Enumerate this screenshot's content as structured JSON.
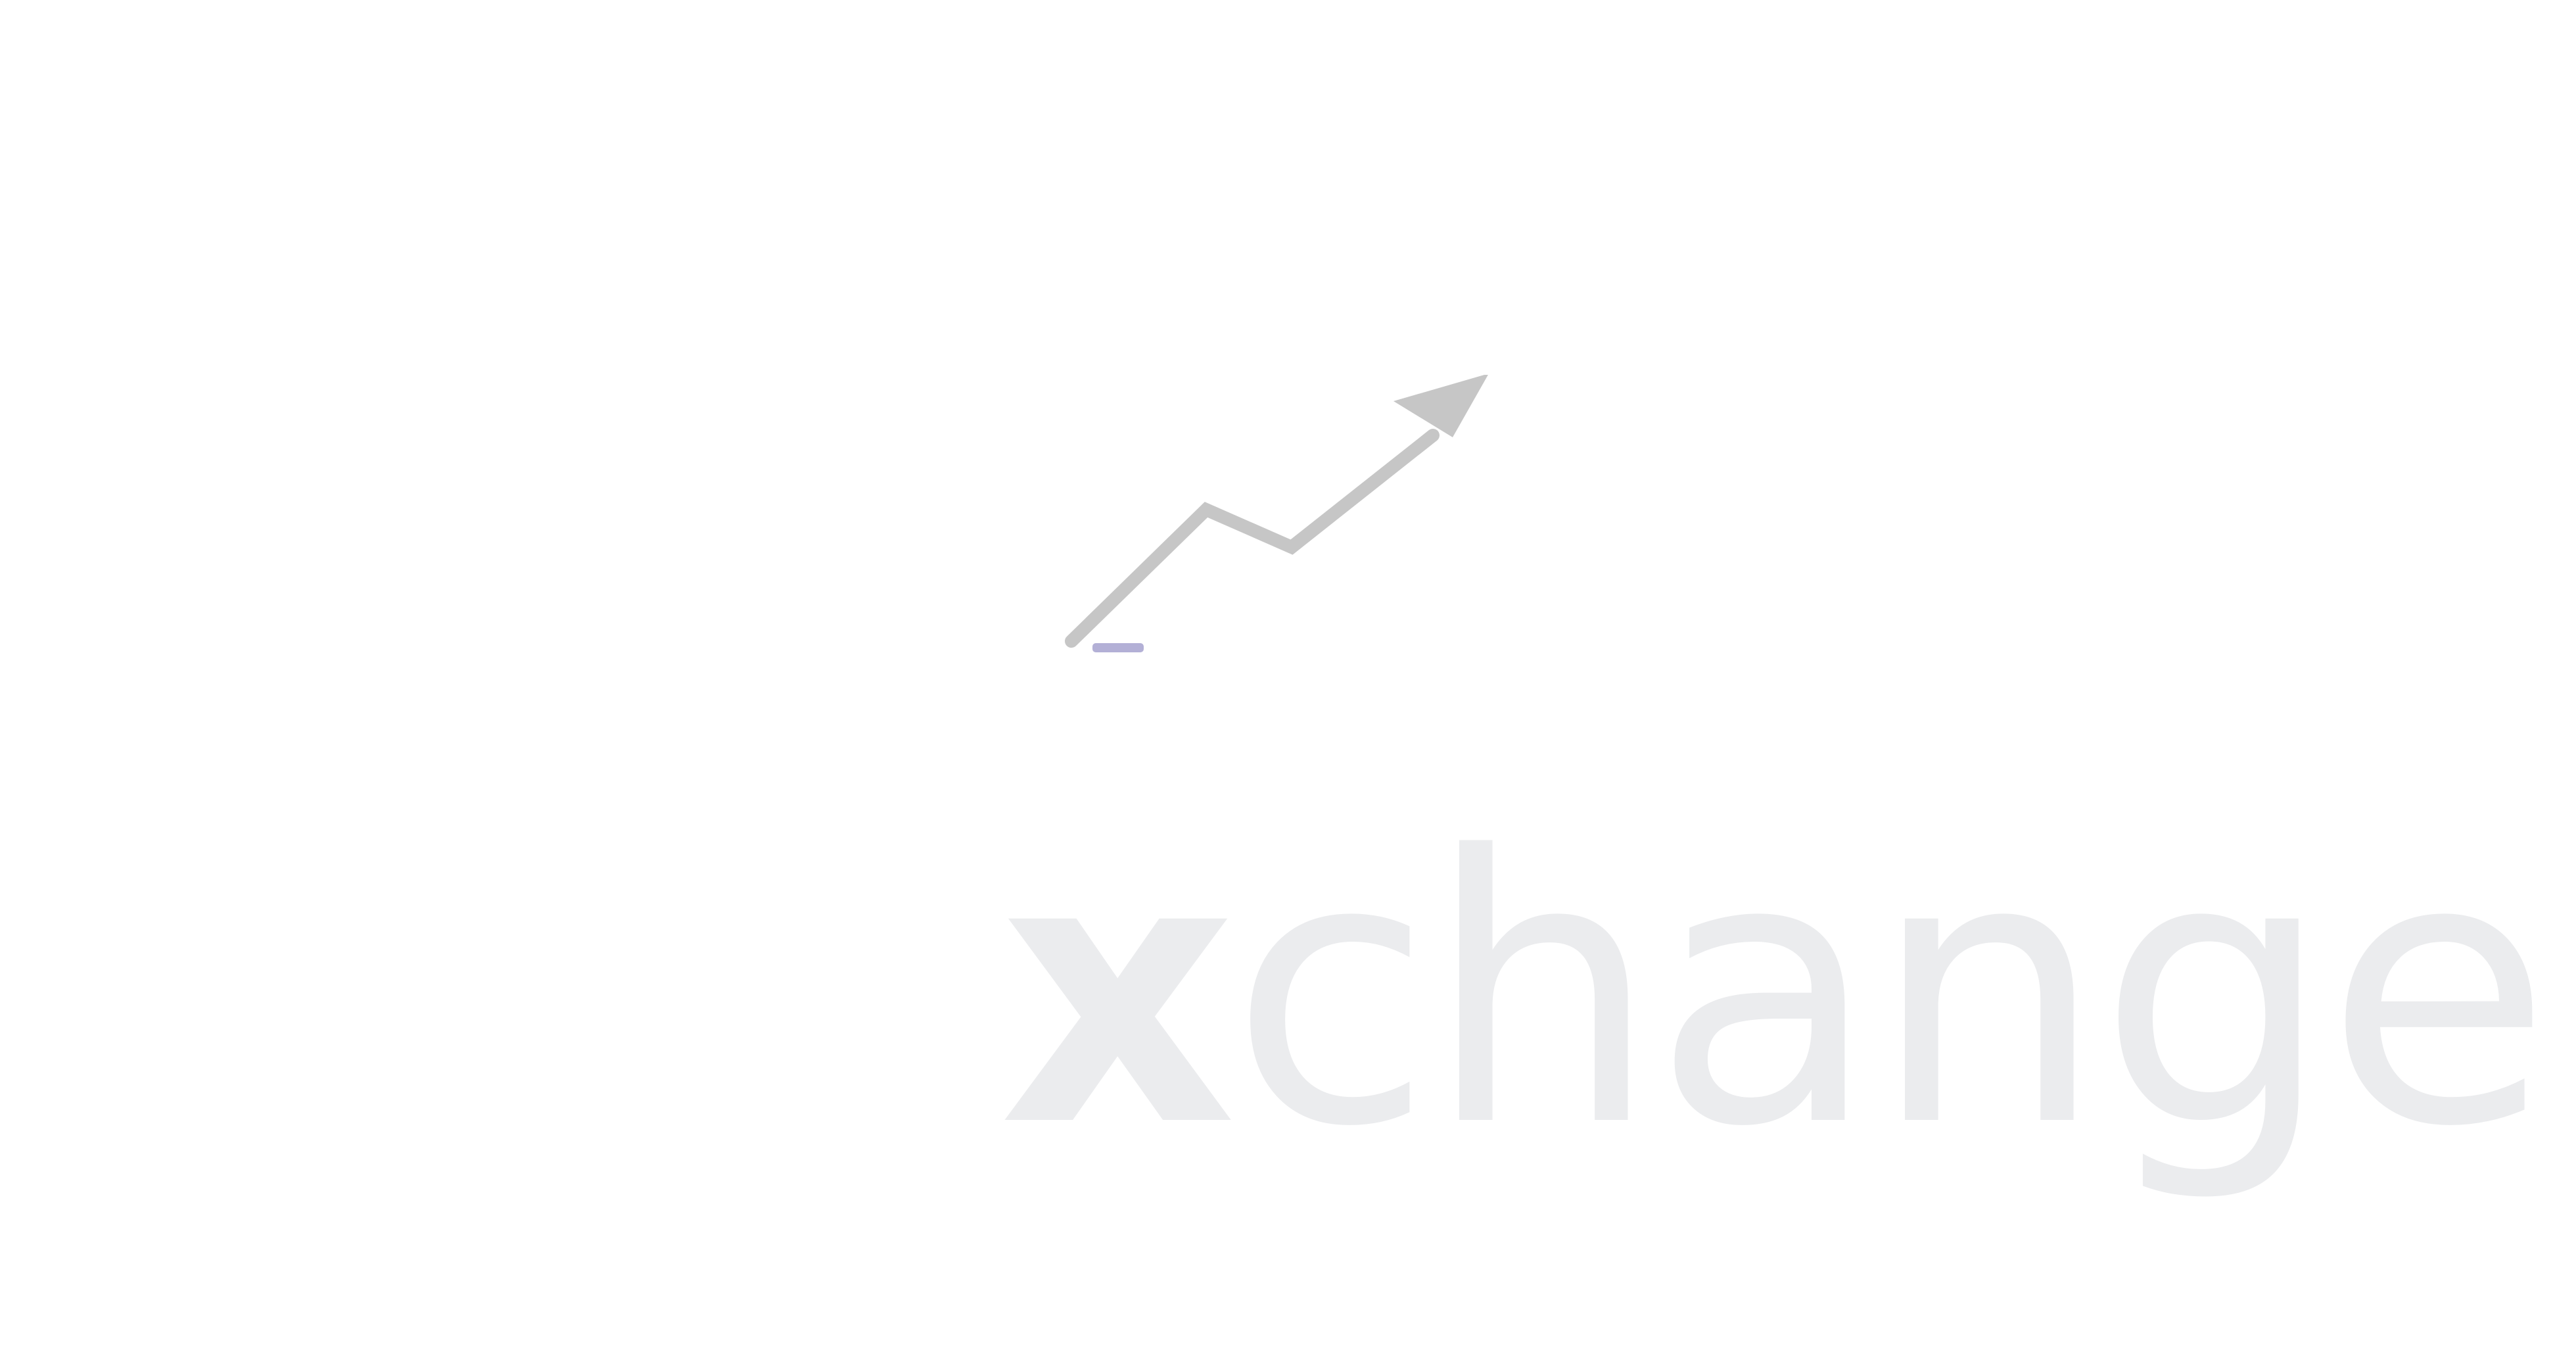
{
  "splash": {
    "wordmark": {
      "lead": "x",
      "rest": "change"
    },
    "colors": {
      "background": "#ffffff",
      "wordmark": "#ebecee",
      "arrow": "#c6c6c6",
      "accent": "#b3b0d6"
    },
    "icons": {
      "logo": "trend-arrow-icon",
      "accent": "accent-tab-icon"
    }
  }
}
